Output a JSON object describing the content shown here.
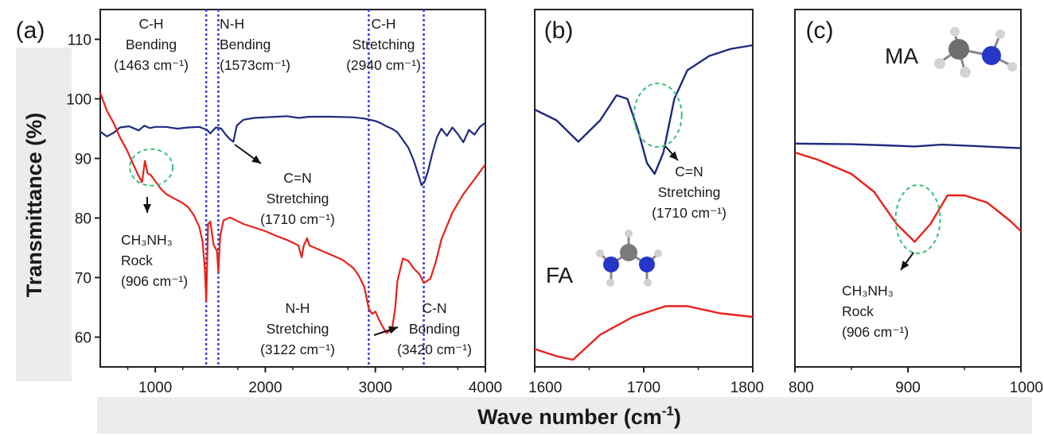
{
  "chart_data": [
    {
      "panel": "(a)",
      "type": "line",
      "xlim": [
        500,
        4000
      ],
      "ylim": [
        55,
        115
      ],
      "xticks": [
        1000,
        2000,
        3000,
        4000
      ],
      "yticks": [
        60,
        70,
        80,
        90,
        100,
        110
      ],
      "ylabel": "Transmittance (%)",
      "reference_lines": [
        1463,
        1573,
        2940,
        3440
      ],
      "series": [
        {
          "color": "#1f2a80",
          "x": [
            500,
            560,
            620,
            680,
            760,
            850,
            900,
            950,
            1000,
            1100,
            1200,
            1300,
            1400,
            1470,
            1500,
            1550,
            1600,
            1640,
            1680,
            1710,
            1740,
            1800,
            1900,
            2000,
            2100,
            2200,
            2300,
            2400,
            2600,
            2800,
            2900,
            3000,
            3050,
            3100,
            3150,
            3200,
            3250,
            3300,
            3350,
            3400,
            3420,
            3450,
            3480,
            3520,
            3560,
            3600,
            3650,
            3700,
            3750,
            3800,
            3850,
            3900,
            3950,
            4000
          ],
          "y": [
            94.5,
            93.7,
            94.3,
            95.2,
            95.4,
            94.7,
            95.5,
            95.1,
            95.3,
            95.3,
            95.0,
            95.2,
            95.3,
            94.8,
            94.2,
            95.2,
            95.0,
            94.0,
            93.2,
            92.8,
            95.5,
            96.5,
            96.8,
            96.9,
            97.0,
            97.1,
            96.8,
            97.0,
            97.0,
            96.9,
            96.7,
            96.3,
            95.9,
            95.4,
            95.0,
            94.4,
            93.1,
            91.8,
            89.6,
            86.7,
            85.5,
            86.2,
            88.0,
            91.0,
            93.6,
            95.0,
            93.8,
            95.2,
            94.1,
            92.7,
            94.8,
            94.0,
            95.3,
            96.0
          ]
        },
        {
          "color": "#e8211b",
          "x": [
            500,
            560,
            620,
            680,
            740,
            800,
            850,
            880,
            906,
            930,
            960,
            1000,
            1050,
            1100,
            1150,
            1200,
            1250,
            1300,
            1350,
            1400,
            1430,
            1450,
            1463,
            1480,
            1500,
            1530,
            1560,
            1573,
            1590,
            1620,
            1680,
            1800,
            1900,
            2000,
            2100,
            2200,
            2300,
            2330,
            2350,
            2380,
            2400,
            2500,
            2600,
            2700,
            2800,
            2850,
            2900,
            2940,
            2970,
            3000,
            3050,
            3100,
            3150,
            3180,
            3200,
            3250,
            3300,
            3350,
            3400,
            3440,
            3500,
            3550,
            3600,
            3700,
            3800,
            3900,
            4000
          ],
          "y": [
            101.0,
            98.0,
            96.0,
            93.5,
            91.5,
            89.0,
            87.0,
            86.0,
            89.6,
            87.5,
            87.2,
            86.2,
            84.9,
            84.0,
            83.5,
            83.0,
            82.5,
            81.8,
            80.5,
            78.5,
            76.0,
            71.5,
            66.0,
            79.0,
            79.4,
            75.5,
            74.5,
            71.0,
            77.0,
            79.6,
            80.1,
            79.0,
            78.4,
            77.8,
            77.0,
            76.3,
            75.4,
            73.4,
            75.4,
            76.6,
            75.4,
            74.6,
            73.8,
            73.0,
            71.6,
            70.3,
            68.4,
            64.8,
            63.9,
            64.3,
            62.3,
            60.7,
            61.2,
            64.8,
            69.4,
            73.2,
            72.8,
            71.5,
            70.6,
            69.1,
            69.8,
            72.7,
            76.4,
            80.9,
            84.0,
            86.5,
            89.0
          ]
        }
      ],
      "annotations": [
        {
          "lines": [
            "C-H",
            "Bending",
            "(1463 cm⁻¹)"
          ]
        },
        {
          "lines": [
            "N-H",
            "Bending",
            "(1573cm⁻¹)"
          ]
        },
        {
          "lines": [
            "C-H",
            "Stretching",
            "(2940 cm⁻¹)"
          ]
        },
        {
          "lines": [
            "C=N",
            "Stretching",
            "(1710 cm⁻¹)"
          ]
        },
        {
          "lines": [
            "CH₃NH₃",
            "Rock",
            "(906 cm⁻¹)"
          ]
        },
        {
          "lines": [
            "N-H",
            "Stretching",
            "(3122 cm⁻¹)"
          ]
        },
        {
          "lines": [
            "C-N",
            "Bonding",
            "(3420 cm⁻¹)"
          ]
        }
      ]
    },
    {
      "panel": "(b)",
      "type": "line",
      "xlim": [
        1600,
        1800
      ],
      "xticks": [
        1600,
        1700,
        1800
      ],
      "molecule": "FA",
      "series": [
        {
          "color": "#1f2a80",
          "x": [
            1600,
            1620,
            1640,
            1660,
            1675,
            1685,
            1695,
            1703,
            1710,
            1718,
            1728,
            1740,
            1760,
            1780,
            1800
          ],
          "y": [
            0.72,
            0.69,
            0.63,
            0.69,
            0.76,
            0.75,
            0.66,
            0.57,
            0.54,
            0.6,
            0.75,
            0.83,
            0.87,
            0.89,
            0.9
          ],
          "y_unit": "fraction of panel height"
        },
        {
          "color": "#e8211b",
          "x": [
            1600,
            1620,
            1635,
            1660,
            1690,
            1720,
            1740,
            1770,
            1800
          ],
          "y": [
            0.05,
            0.03,
            0.02,
            0.09,
            0.14,
            0.17,
            0.17,
            0.15,
            0.14
          ],
          "y_unit": "fraction of panel height"
        }
      ],
      "annotations": [
        {
          "lines": [
            "C=N",
            "Stretching",
            "(1710 cm⁻¹)"
          ]
        }
      ]
    },
    {
      "panel": "(c)",
      "type": "line",
      "xlim": [
        800,
        1000
      ],
      "xticks": [
        800,
        900,
        1000
      ],
      "molecule": "MA",
      "series": [
        {
          "color": "#1f2a80",
          "x": [
            800,
            850,
            880,
            906,
            930,
            960,
            1000
          ],
          "y": [
            0.625,
            0.623,
            0.62,
            0.617,
            0.622,
            0.618,
            0.612
          ],
          "y_unit": "fraction of panel height"
        },
        {
          "color": "#e8211b",
          "x": [
            800,
            820,
            850,
            870,
            890,
            906,
            920,
            935,
            950,
            970,
            990,
            1000
          ],
          "y": [
            0.6,
            0.58,
            0.54,
            0.49,
            0.4,
            0.35,
            0.4,
            0.48,
            0.48,
            0.46,
            0.41,
            0.38
          ],
          "y_unit": "fraction of panel height"
        }
      ],
      "annotations": [
        {
          "lines": [
            "CH₃NH₃",
            "Rock",
            "(906 cm⁻¹)"
          ]
        }
      ]
    }
  ],
  "x_axis_title_main": "Wave number (cm",
  "x_axis_title_sup": "-1",
  "x_axis_title_close": ")"
}
